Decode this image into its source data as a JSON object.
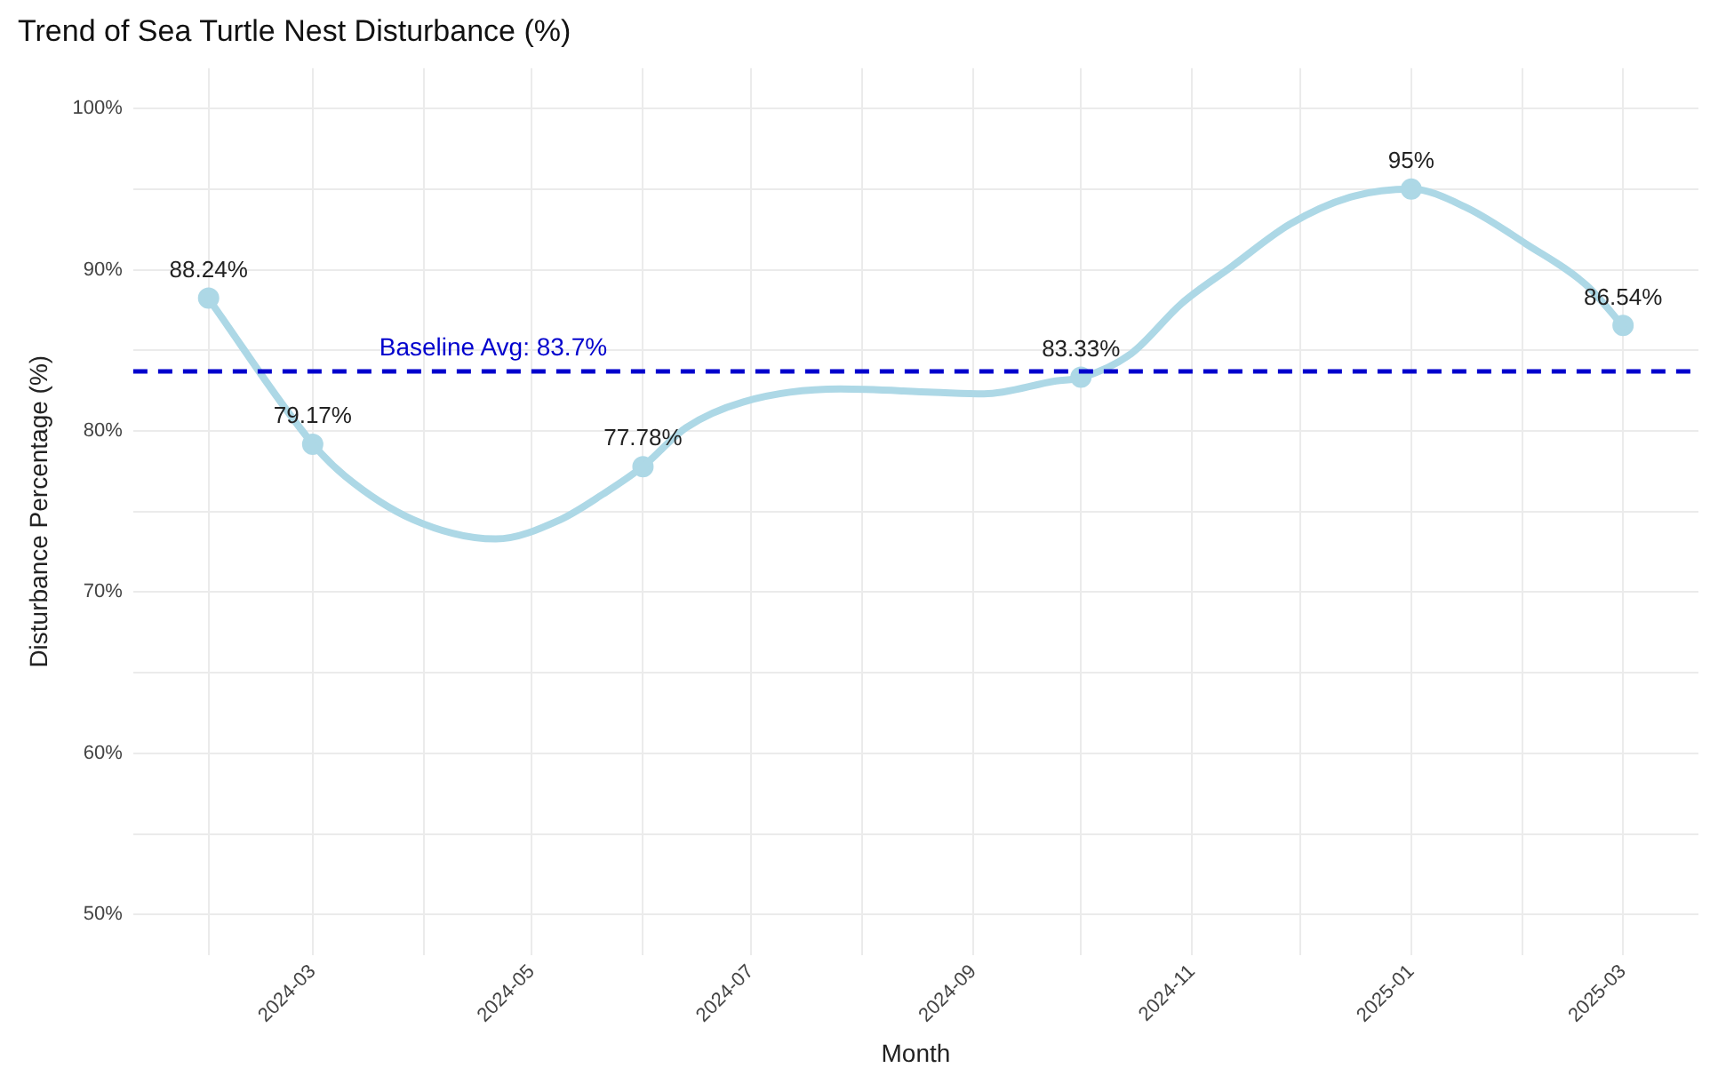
{
  "chart_data": {
    "type": "line",
    "title": "Trend of Sea Turtle Nest Disturbance (%)",
    "xlabel": "Month",
    "ylabel": "Disturbance Percentage (%)",
    "xlim": [
      "2024-01-11",
      "2025-03-22"
    ],
    "xticks": [
      {
        "value": "2024-02",
        "label": null
      },
      "2024-03",
      {
        "value": "2024-04",
        "label": null
      },
      "2024-05",
      {
        "value": "2024-06",
        "label": null
      },
      "2024-07",
      {
        "value": "2024-08",
        "label": null
      },
      "2024-09",
      {
        "value": "2024-10",
        "label": null
      },
      "2024-11",
      {
        "value": "2024-12",
        "label": null
      },
      "2025-01",
      {
        "value": "2025-02",
        "label": null
      },
      "2025-03"
    ],
    "ylim": [
      47.5,
      102.5
    ],
    "yticks": [
      {
        "value": 50,
        "label": "50%"
      },
      {
        "value": 55,
        "label": null
      },
      {
        "value": 60,
        "label": "60%"
      },
      {
        "value": 65,
        "label": null
      },
      {
        "value": 70,
        "label": "70%"
      },
      {
        "value": 75,
        "label": null
      },
      {
        "value": 80,
        "label": "80%"
      },
      {
        "value": 85,
        "label": null
      },
      {
        "value": 90,
        "label": "90%"
      },
      {
        "value": 95,
        "label": null
      },
      {
        "value": 100,
        "label": "100%"
      }
    ],
    "grid": true,
    "legend": false,
    "ref_lines": [
      {
        "axis": "y",
        "value": 83.7,
        "label": "Baseline Avg: 83.7%",
        "color": "#0000cd",
        "line_style": "dashed"
      }
    ],
    "series": [
      {
        "color": "#add8e6",
        "marker": "none",
        "line_style": "solid",
        "x": [
          "2024-02",
          "2024-03",
          "2024-03-10",
          "2024-03-29",
          "2024-04-21",
          "2024-05-09",
          "2024-05-21",
          "2024-06",
          "2024-06-13",
          "2024-06-29",
          "2024-07-26",
          "2024-08-21",
          "2024-09-04",
          "2024-09-24",
          "2024-10",
          "2024-10-15",
          "2024-10-29",
          "2024-11-12",
          "2024-11-28",
          "2024-12-15",
          "2025-01",
          "2025-01-16",
          "2025-02-02",
          "2025-02-19",
          "2025-03"
        ],
        "values": [
          88.2,
          79.2,
          77.2,
          74.5,
          73.3,
          74.5,
          76.1,
          77.8,
          80.2,
          81.8,
          82.6,
          82.4,
          82.3,
          83.1,
          83.3,
          84.8,
          87.9,
          90.2,
          92.8,
          94.5,
          95,
          93.9,
          91.6,
          89.0,
          86.5
        ]
      },
      {
        "type": "scatter",
        "color": "#add8e6",
        "marker": "circle",
        "x": [
          "2024-02",
          "2024-03",
          "2024-06",
          "2024-10",
          "2025-01",
          "2025-03"
        ],
        "values": [
          88.24,
          79.17,
          77.78,
          83.33,
          95,
          86.54
        ],
        "value_labels": [
          "88.24%",
          "79.17%",
          "77.78%",
          "83.33%",
          "95%",
          "86.54%"
        ]
      }
    ]
  }
}
